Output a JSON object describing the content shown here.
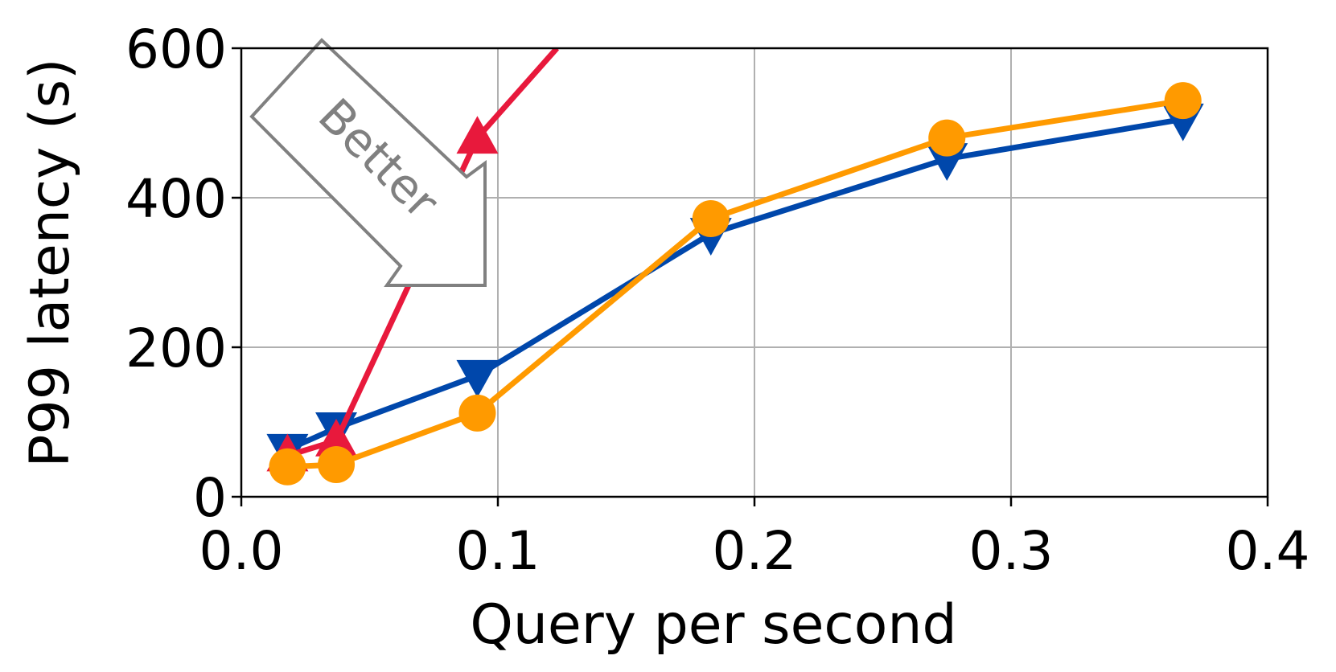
{
  "chart_data": {
    "type": "line",
    "xlabel": "Query per second",
    "ylabel": "P99 latency (s)",
    "xlim": [
      0.0,
      0.4
    ],
    "ylim": [
      0,
      600
    ],
    "xticks": [
      "0.0",
      "0.1",
      "0.2",
      "0.3",
      "0.4"
    ],
    "yticks": [
      "0",
      "200",
      "400",
      "600"
    ],
    "grid": true,
    "annotation": "Better",
    "series": [
      {
        "color": "#0047AB",
        "marker": "triangle-down",
        "x": [
          0.018,
          0.037,
          0.092,
          0.183,
          0.275,
          0.367
        ],
        "y": [
          63,
          92,
          162,
          352,
          452,
          505
        ]
      },
      {
        "color": "#E8193C",
        "marker": "triangle-up",
        "x": [
          0.018,
          0.037,
          0.092,
          0.123
        ],
        "y": [
          55,
          75,
          480,
          600
        ]
      },
      {
        "color": "#FF9A00",
        "marker": "circle",
        "x": [
          0.018,
          0.037,
          0.092,
          0.183,
          0.275,
          0.367
        ],
        "y": [
          40,
          43,
          112,
          372,
          480,
          530
        ]
      }
    ]
  }
}
